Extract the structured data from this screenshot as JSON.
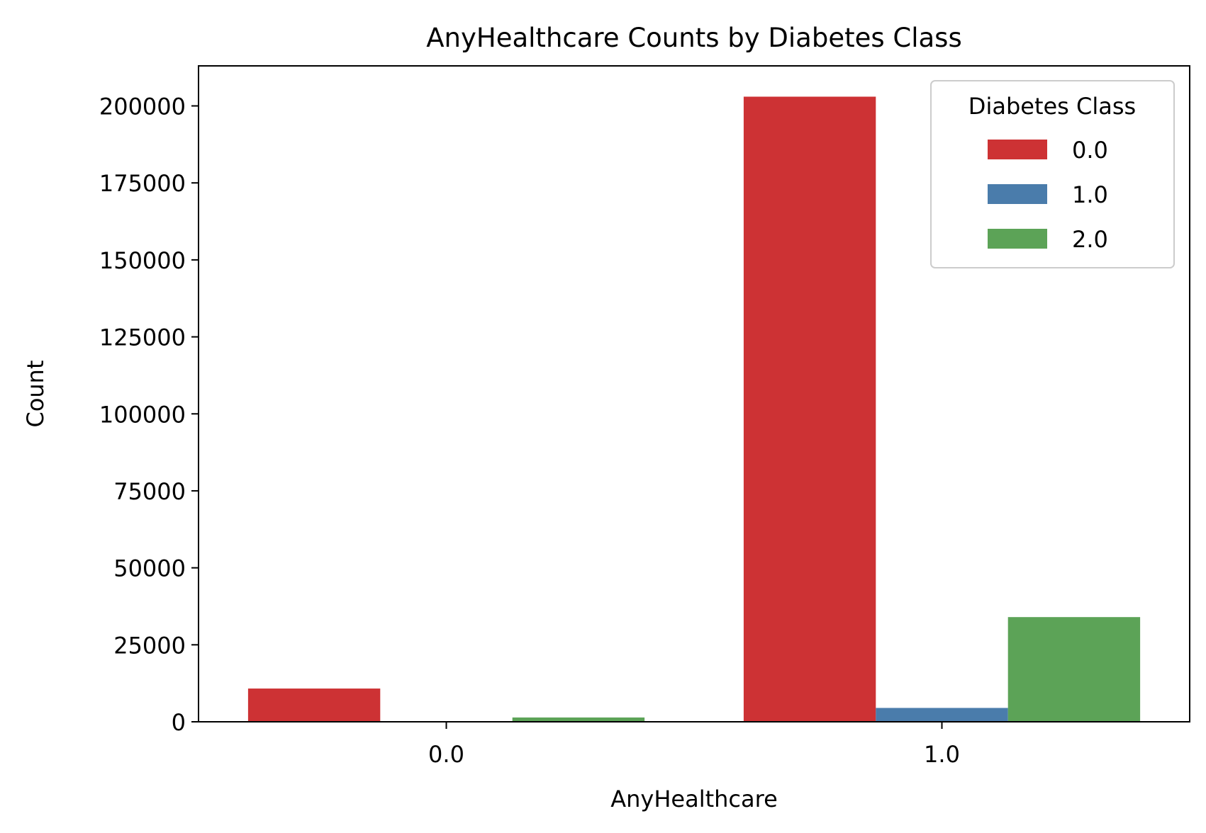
{
  "chart_data": {
    "type": "bar",
    "title": "AnyHealthcare Counts by Diabetes Class",
    "xlabel": "AnyHealthcare",
    "ylabel": "Count",
    "categories": [
      "0.0",
      "1.0"
    ],
    "series": [
      {
        "name": "0.0",
        "color": "#cd3234",
        "values": [
          10800,
          203000
        ]
      },
      {
        "name": "1.0",
        "color": "#4a7cab",
        "values": [
          90,
          4500
        ]
      },
      {
        "name": "2.0",
        "color": "#5ca357",
        "values": [
          1400,
          34000
        ]
      }
    ],
    "ylim": [
      0,
      213000
    ],
    "yticks": [
      0,
      25000,
      50000,
      75000,
      100000,
      125000,
      150000,
      175000,
      200000
    ],
    "grid": false,
    "legend": {
      "title": "Diabetes Class",
      "placement": "top-right"
    }
  }
}
